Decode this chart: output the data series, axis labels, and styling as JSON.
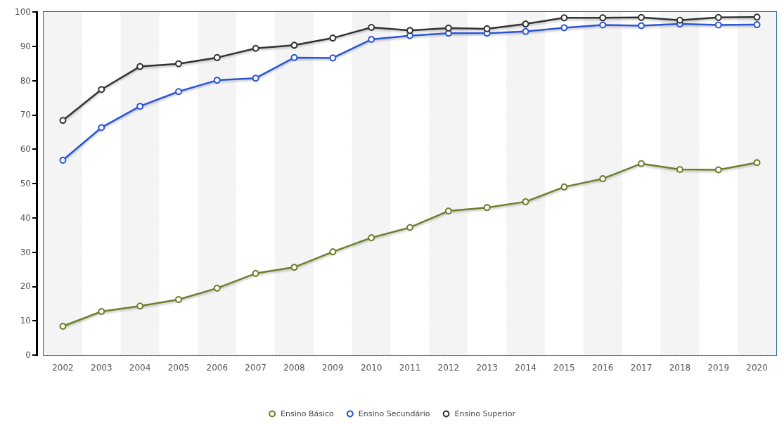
{
  "chart_data": {
    "type": "line",
    "categories": [
      "2002",
      "2003",
      "2004",
      "2005",
      "2006",
      "2007",
      "2008",
      "2009",
      "2010",
      "2011",
      "2012",
      "2013",
      "2014",
      "2015",
      "2016",
      "2017",
      "2018",
      "2019",
      "2020"
    ],
    "series": [
      {
        "name": "Ensino Básico",
        "color": "#6b7f2a",
        "values": [
          8.4,
          12.7,
          14.3,
          16.2,
          19.5,
          23.8,
          25.6,
          30.1,
          34.2,
          37.2,
          42.0,
          43.0,
          44.7,
          49.0,
          51.4,
          55.8,
          54.1,
          54.0,
          56.1
        ]
      },
      {
        "name": "Ensino Secundário",
        "color": "#2a55d4",
        "values": [
          56.8,
          66.3,
          72.5,
          76.8,
          80.1,
          80.7,
          86.7,
          86.6,
          92.0,
          93.1,
          93.8,
          93.8,
          94.3,
          95.4,
          96.2,
          96.0,
          96.5,
          96.2,
          96.3
        ]
      },
      {
        "name": "Ensino Superior",
        "color": "#333333",
        "values": [
          68.4,
          77.4,
          84.1,
          84.9,
          86.7,
          89.4,
          90.3,
          92.4,
          95.5,
          94.6,
          95.3,
          95.1,
          96.5,
          98.3,
          98.3,
          98.4,
          97.6,
          98.4,
          98.5
        ]
      }
    ],
    "ylim": [
      0,
      100
    ],
    "yticks": [
      0,
      10,
      20,
      30,
      40,
      50,
      60,
      70,
      80,
      90,
      100
    ],
    "grid": "y",
    "legend": "bottom",
    "marker": "circle",
    "line_style": "solid"
  }
}
